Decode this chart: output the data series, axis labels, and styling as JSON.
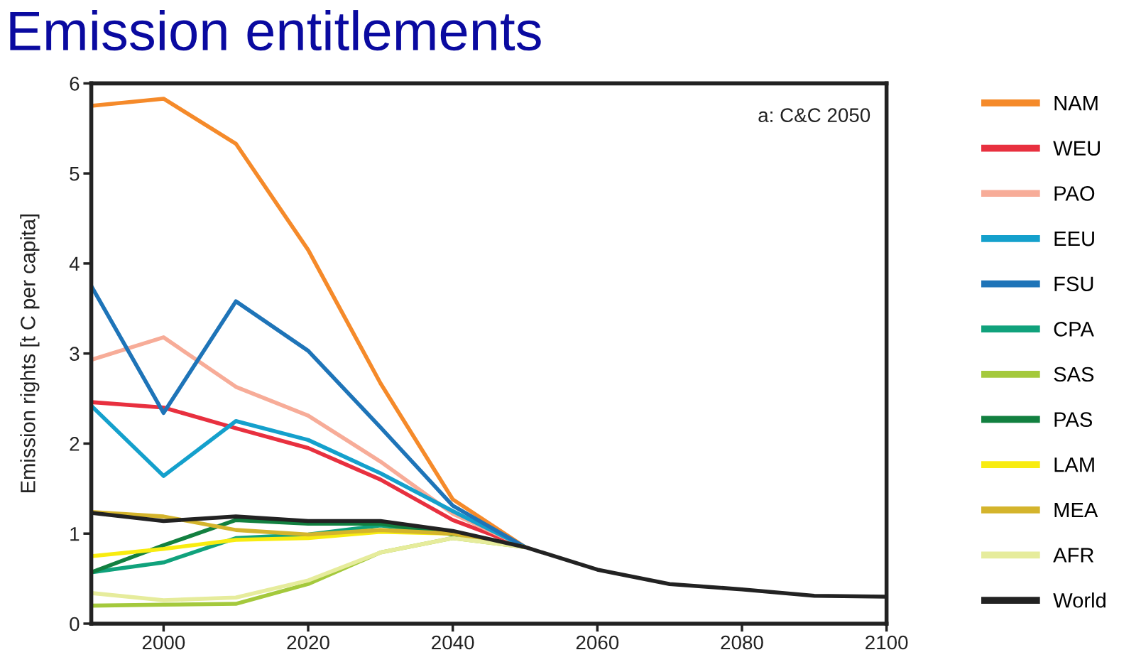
{
  "chart_data": {
    "type": "line",
    "title": "Emission entitlements",
    "ylabel": "Emission rights [t C per capita]",
    "annotations": [
      "a: C&C 2050"
    ],
    "x": [
      1990,
      2000,
      2010,
      2020,
      2030,
      2040,
      2050,
      2060,
      2070,
      2080,
      2090,
      2100
    ],
    "xlim": [
      1990,
      2100
    ],
    "xticks": [
      2000,
      2020,
      2040,
      2060,
      2080,
      2100
    ],
    "ylim": [
      0,
      6
    ],
    "yticks": [
      0,
      1,
      2,
      3,
      4,
      5,
      6
    ],
    "grid": false,
    "legend": "right",
    "marker": "none",
    "line_style": "solid",
    "series": [
      {
        "name": "NAM",
        "color": "#f58a2a",
        "values": [
          5.75,
          5.83,
          5.33,
          4.15,
          2.67,
          1.38,
          0.85,
          null,
          null,
          null,
          null,
          null
        ]
      },
      {
        "name": "WEU",
        "color": "#e8303f",
        "values": [
          2.46,
          2.4,
          2.17,
          1.95,
          1.6,
          1.15,
          0.85,
          null,
          null,
          null,
          null,
          null
        ]
      },
      {
        "name": "PAO",
        "color": "#f7ac98",
        "values": [
          2.93,
          3.18,
          2.63,
          2.31,
          1.8,
          1.22,
          0.85,
          null,
          null,
          null,
          null,
          null
        ]
      },
      {
        "name": "EEU",
        "color": "#14a0cc",
        "values": [
          2.42,
          1.64,
          2.25,
          2.04,
          1.67,
          1.25,
          0.85,
          null,
          null,
          null,
          null,
          null
        ]
      },
      {
        "name": "FSU",
        "color": "#1e74b8",
        "values": [
          3.75,
          2.34,
          3.58,
          3.03,
          2.18,
          1.31,
          0.85,
          null,
          null,
          null,
          null,
          null
        ]
      },
      {
        "name": "CPA",
        "color": "#10a27c",
        "values": [
          0.57,
          0.68,
          0.95,
          0.99,
          1.09,
          1.0,
          0.85,
          null,
          null,
          null,
          null,
          null
        ]
      },
      {
        "name": "SAS",
        "color": "#a4c93c",
        "values": [
          0.2,
          0.21,
          0.22,
          0.44,
          0.79,
          0.95,
          0.85,
          null,
          null,
          null,
          null,
          null
        ]
      },
      {
        "name": "PAS",
        "color": "#128040",
        "values": [
          0.57,
          0.87,
          1.15,
          1.11,
          1.11,
          0.99,
          0.85,
          null,
          null,
          null,
          null,
          null
        ]
      },
      {
        "name": "LAM",
        "color": "#f8ec10",
        "values": [
          0.75,
          0.83,
          0.93,
          0.95,
          1.02,
          1.0,
          0.85,
          null,
          null,
          null,
          null,
          null
        ]
      },
      {
        "name": "MEA",
        "color": "#d4b42c",
        "values": [
          1.24,
          1.19,
          1.04,
          0.99,
          1.04,
          1.0,
          0.85,
          null,
          null,
          null,
          null,
          null
        ]
      },
      {
        "name": "AFR",
        "color": "#e6ec9c",
        "values": [
          0.34,
          0.26,
          0.29,
          0.48,
          0.79,
          0.95,
          0.85,
          null,
          null,
          null,
          null,
          null
        ]
      },
      {
        "name": "World",
        "color": "#222222",
        "values": [
          1.23,
          1.14,
          1.19,
          1.14,
          1.14,
          1.03,
          0.85,
          0.6,
          0.44,
          0.38,
          0.31,
          0.3
        ]
      }
    ]
  }
}
